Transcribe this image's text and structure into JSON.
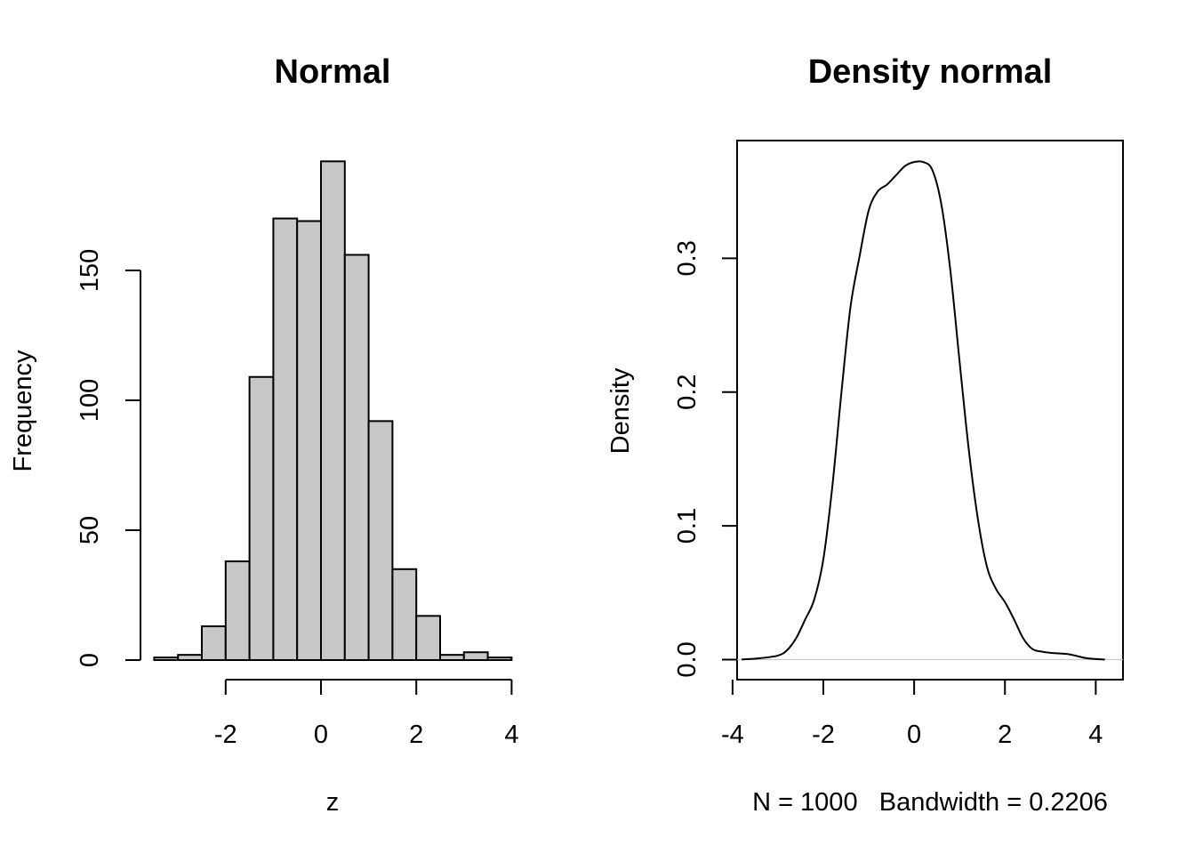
{
  "chart_data": [
    {
      "type": "bar",
      "title": "Normal",
      "xlabel": "z",
      "ylabel": "Frequency",
      "bin_width": 0.5,
      "bin_starts": [
        -3.5,
        -3.0,
        -2.5,
        -2.0,
        -1.5,
        -1.0,
        -0.5,
        0.0,
        0.5,
        1.0,
        1.5,
        2.0,
        2.5,
        3.0,
        3.5
      ],
      "values": [
        1,
        2,
        13,
        38,
        109,
        170,
        169,
        192,
        156,
        92,
        35,
        17,
        2,
        3,
        1
      ],
      "x_ticks": [
        -2,
        0,
        2,
        4
      ],
      "x_tick_labels": [
        "-2",
        "0",
        "2",
        "4"
      ],
      "y_ticks": [
        0,
        50,
        100,
        150
      ],
      "y_tick_labels": [
        "0",
        "50",
        "100",
        "150"
      ],
      "grid": false
    },
    {
      "type": "line",
      "title": "Density normal",
      "xlabel": "N = 1000   Bandwidth = 0.2206",
      "ylabel": "Density",
      "xlim": [
        -3.9,
        4.6
      ],
      "ylim": [
        -0.015,
        0.388
      ],
      "x": [
        -3.8,
        -3.4,
        -3.0,
        -2.8,
        -2.6,
        -2.4,
        -2.2,
        -2.0,
        -1.8,
        -1.6,
        -1.4,
        -1.2,
        -1.0,
        -0.8,
        -0.6,
        -0.4,
        -0.2,
        0.0,
        0.2,
        0.4,
        0.6,
        0.8,
        1.0,
        1.2,
        1.4,
        1.6,
        1.8,
        2.0,
        2.2,
        2.4,
        2.6,
        2.8,
        3.0,
        3.4,
        3.8,
        4.2
      ],
      "y": [
        0.0,
        0.001,
        0.003,
        0.007,
        0.016,
        0.03,
        0.045,
        0.075,
        0.13,
        0.2,
        0.264,
        0.302,
        0.336,
        0.35,
        0.355,
        0.362,
        0.369,
        0.372,
        0.372,
        0.366,
        0.34,
        0.29,
        0.223,
        0.158,
        0.106,
        0.07,
        0.053,
        0.043,
        0.03,
        0.016,
        0.008,
        0.006,
        0.005,
        0.004,
        0.001,
        0.0
      ],
      "x_ticks": [
        -4,
        -2,
        0,
        2,
        4
      ],
      "x_tick_labels": [
        "-4",
        "-2",
        "0",
        "2",
        "4"
      ],
      "y_ticks": [
        0.0,
        0.1,
        0.2,
        0.3
      ],
      "y_tick_labels": [
        "0.0",
        "0.1",
        "0.2",
        "0.3"
      ],
      "grid": false
    }
  ]
}
